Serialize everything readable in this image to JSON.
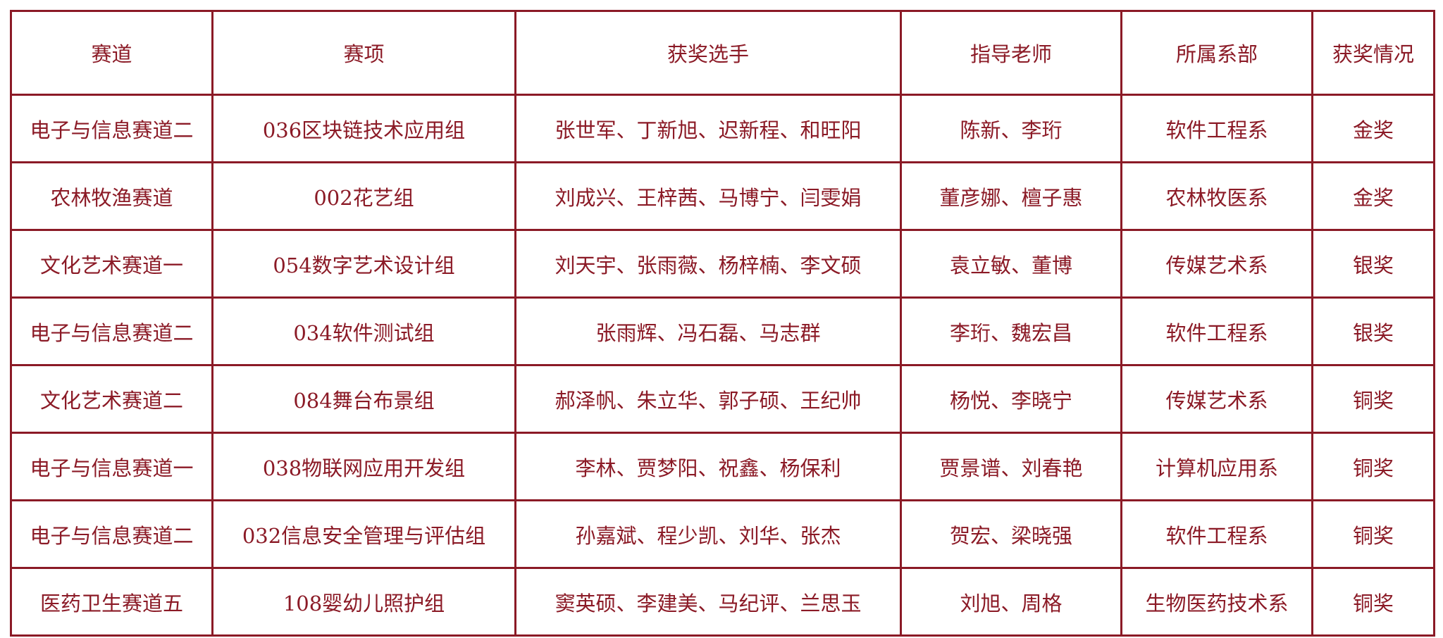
{
  "table": {
    "headers": [
      "赛道",
      "赛项",
      "获奖选手",
      "指导老师",
      "所属系部",
      "获奖情况"
    ],
    "rows": [
      [
        "电子与信息赛道二",
        "036区块链技术应用组",
        "张世军、丁新旭、迟新程、和旺阳",
        "陈新、李珩",
        "软件工程系",
        "金奖"
      ],
      [
        "农林牧渔赛道",
        "002花艺组",
        "刘成兴、王梓茜、马博宁、闫雯娟",
        "董彦娜、檀子惠",
        "农林牧医系",
        "金奖"
      ],
      [
        "文化艺术赛道一",
        "054数字艺术设计组",
        "刘天宇、张雨薇、杨梓楠、李文硕",
        "袁立敏、董博",
        "传媒艺术系",
        "银奖"
      ],
      [
        "电子与信息赛道二",
        "034软件测试组",
        "张雨辉、冯石磊、马志群",
        "李珩、魏宏昌",
        "软件工程系",
        "银奖"
      ],
      [
        "文化艺术赛道二",
        "084舞台布景组",
        "郝泽帆、朱立华、郭子硕、王纪帅",
        "杨悦、李晓宁",
        "传媒艺术系",
        "铜奖"
      ],
      [
        "电子与信息赛道一",
        "038物联网应用开发组",
        "李林、贾梦阳、祝鑫、杨保利",
        "贾景谱、刘春艳",
        "计算机应用系",
        "铜奖"
      ],
      [
        "电子与信息赛道二",
        "032信息安全管理与评估组",
        "孙嘉斌、程少凯、刘华、张杰",
        "贺宏、梁晓强",
        "软件工程系",
        "铜奖"
      ],
      [
        "医药卫生赛道五",
        "108婴幼儿照护组",
        "窦英硕、李建美、马纪评、兰思玉",
        "刘旭、周格",
        "生物医药技术系",
        "铜奖"
      ]
    ]
  },
  "colors": {
    "text": "#8b1a26",
    "border": "#8b1a26",
    "background": "#ffffff"
  }
}
